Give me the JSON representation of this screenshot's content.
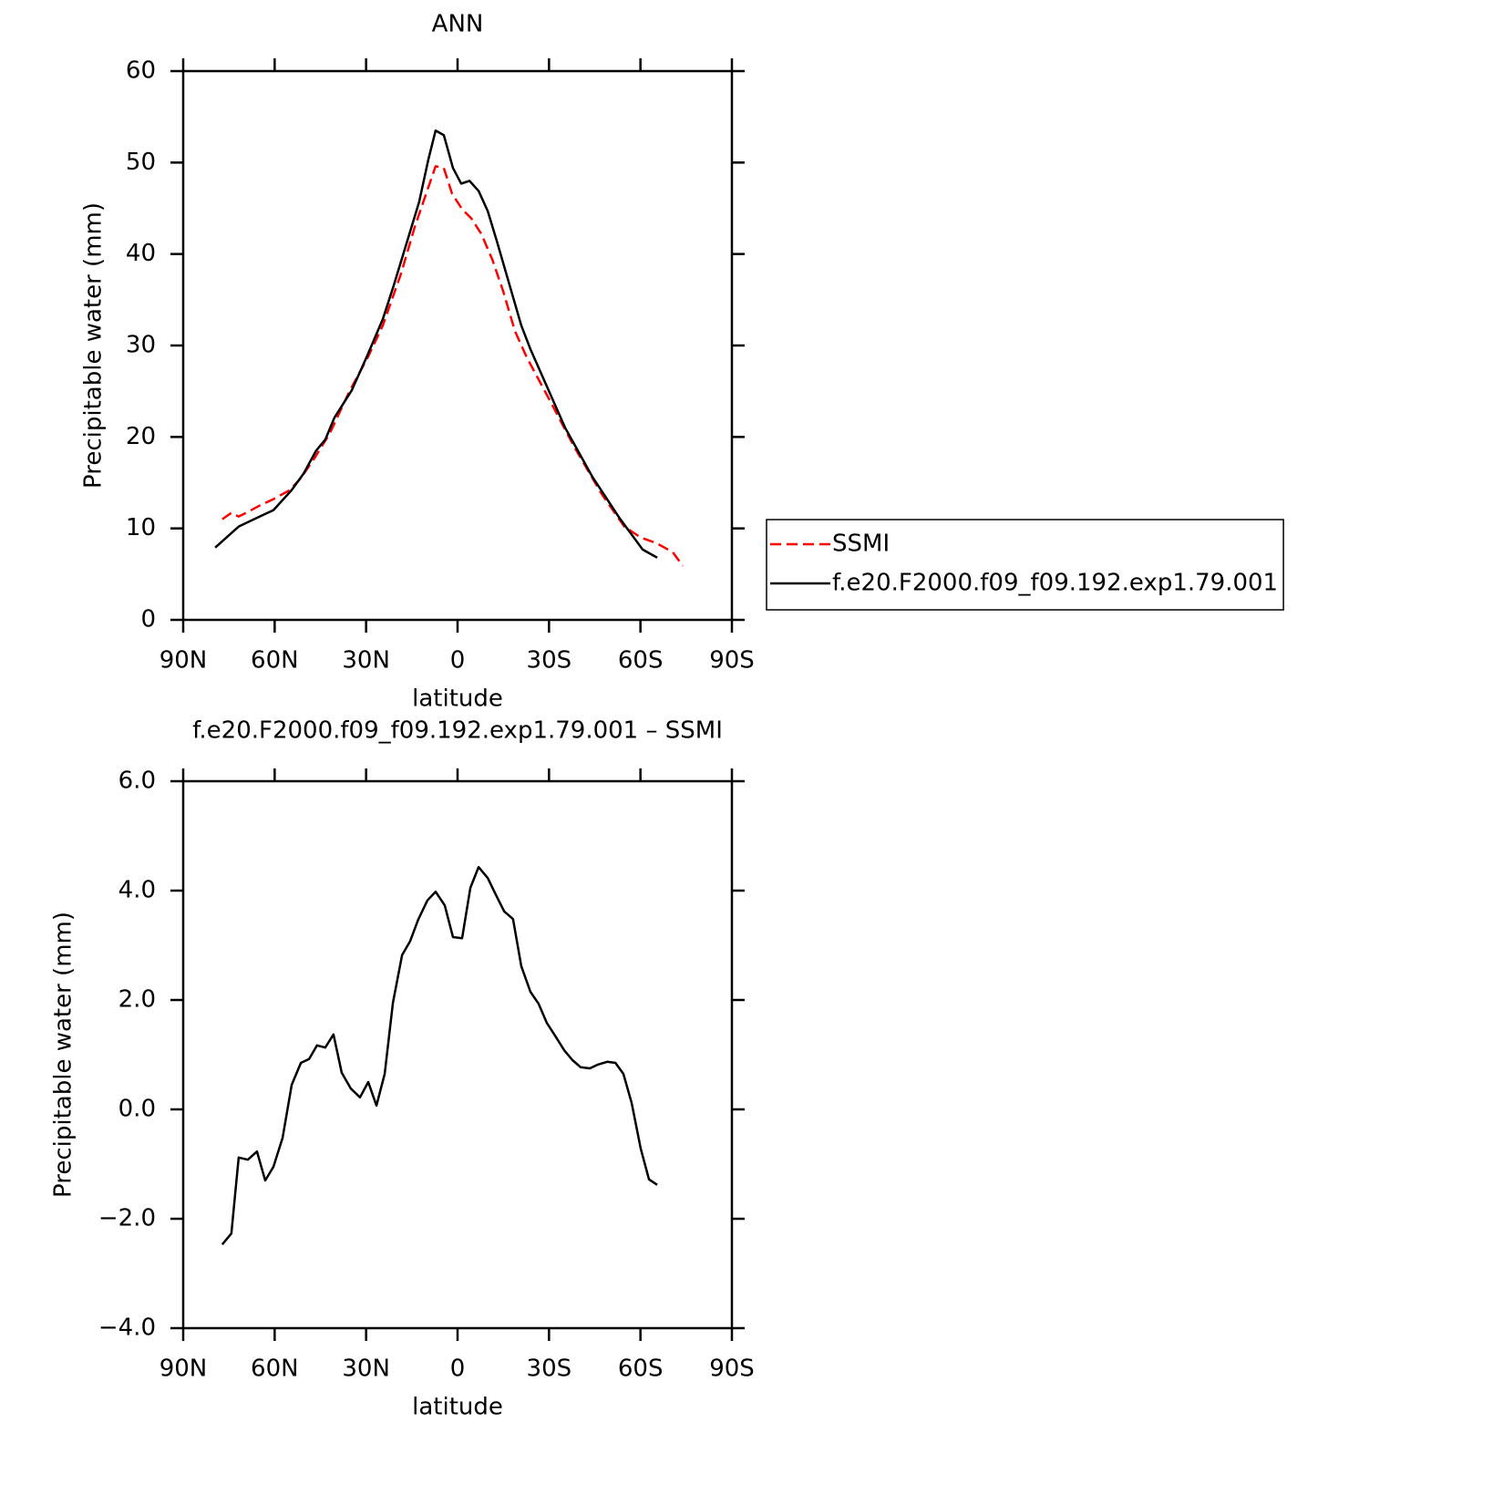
{
  "chart_data": [
    {
      "type": "line",
      "title": "ANN",
      "xlabel": "latitude",
      "ylabel": "Precipitable water (mm)",
      "xlim": [
        90,
        -90
      ],
      "xticks": [
        {
          "value": 90,
          "label": "90N"
        },
        {
          "value": 60,
          "label": "60N"
        },
        {
          "value": 30,
          "label": "30N"
        },
        0,
        {
          "value": -30,
          "label": "30S"
        },
        {
          "value": -60,
          "label": "60S"
        },
        {
          "value": -90,
          "label": "90S"
        }
      ],
      "ylim": [
        0,
        60
      ],
      "yticks": [
        0,
        10,
        20,
        30,
        40,
        50,
        60
      ],
      "legend": "right",
      "series": [
        {
          "name": "SSMI",
          "color": "#ff0000",
          "linestyle": "dashed",
          "x": [
            77.2,
            74.2,
            71.8,
            68.8,
            64.9,
            60.4,
            55.0,
            51.4,
            46.9,
            41.9,
            35.6,
            29.6,
            24.5,
            18.5,
            14.1,
            10.2,
            7.2,
            4.5,
            1.8,
            -1.5,
            -4.5,
            -7.8,
            -11.4,
            -15.0,
            -18.8,
            -22.7,
            -29.3,
            -38.3,
            -47.2,
            -54.7,
            -60.1,
            -65.2,
            -70.6,
            -73.9
          ],
          "values": [
            11.0,
            11.7,
            11.3,
            11.8,
            12.5,
            13.2,
            14.2,
            15.5,
            17.7,
            20.4,
            24.9,
            28.6,
            32.2,
            37.9,
            42.9,
            46.7,
            49.6,
            49.4,
            46.6,
            44.9,
            43.9,
            42.2,
            39.4,
            35.9,
            31.6,
            28.7,
            24.6,
            18.9,
            13.8,
            10.2,
            9.0,
            8.4,
            7.4,
            5.9
          ]
        },
        {
          "name": "f.e20.F2000.f09_f09.192.exp1.79.001",
          "color": "#000000",
          "linestyle": "solid",
          "x": [
            79.5,
            71.8,
            64.9,
            60.4,
            54.4,
            50.5,
            46.4,
            43.4,
            40.4,
            34.7,
            29.6,
            24.5,
            20.9,
            12.6,
            9.6,
            7.2,
            4.5,
            1.5,
            -1.2,
            -3.9,
            -6.9,
            -9.9,
            -12.9,
            -20.9,
            -23.9,
            -35.3,
            -44.3,
            -53.2,
            -60.7,
            -62.8,
            -65.5
          ],
          "values": [
            7.9,
            10.2,
            11.3,
            12.0,
            14.2,
            16.0,
            18.5,
            19.7,
            22.1,
            25.1,
            28.9,
            32.9,
            36.6,
            45.7,
            50.3,
            53.5,
            53.0,
            49.4,
            47.7,
            48.0,
            46.9,
            44.7,
            41.4,
            32.2,
            29.6,
            21.0,
            15.6,
            11.1,
            7.7,
            7.3,
            6.8
          ]
        }
      ]
    },
    {
      "type": "line",
      "title": "f.e20.F2000.f09_f09.192.exp1.79.001 – SSMI",
      "xlabel": "latitude",
      "ylabel": "Precipitable water (mm)",
      "xlim": [
        90,
        -90
      ],
      "xticks": [
        {
          "value": 90,
          "label": "90N"
        },
        {
          "value": 60,
          "label": "60N"
        },
        {
          "value": 30,
          "label": "30N"
        },
        0,
        {
          "value": -30,
          "label": "30S"
        },
        {
          "value": -60,
          "label": "60S"
        },
        {
          "value": -90,
          "label": "90S"
        }
      ],
      "ylim": [
        -4,
        6
      ],
      "yticks": [
        {
          "value": -4,
          "label": "−4.0"
        },
        {
          "value": -2,
          "label": "−2.0"
        },
        {
          "value": 0,
          "label": "0.0"
        },
        {
          "value": 2,
          "label": "2.0"
        },
        {
          "value": 4,
          "label": "4.0"
        },
        {
          "value": 6,
          "label": "6.0"
        }
      ],
      "series": [
        {
          "color": "#000000",
          "linestyle": "solid",
          "x": [
            77.2,
            74.2,
            71.8,
            68.8,
            65.8,
            63.1,
            60.4,
            57.4,
            54.4,
            51.4,
            48.7,
            46.1,
            43.4,
            40.7,
            38.0,
            35.0,
            32.0,
            29.3,
            26.6,
            23.9,
            21.2,
            18.2,
            15.6,
            12.9,
            9.9,
            7.2,
            4.2,
            1.5,
            -1.5,
            -4.2,
            -6.9,
            -9.9,
            -12.6,
            -15.3,
            -18.2,
            -20.9,
            -23.9,
            -26.6,
            -29.3,
            -32.3,
            -35.0,
            -37.7,
            -40.4,
            -43.4,
            -46.1,
            -49.1,
            -51.8,
            -54.4,
            -57.1,
            -60.1,
            -62.8,
            -65.5
          ],
          "values": [
            -2.47,
            -2.27,
            -0.88,
            -0.92,
            -0.77,
            -1.3,
            -1.05,
            -0.52,
            0.45,
            0.85,
            0.92,
            1.17,
            1.13,
            1.37,
            0.67,
            0.38,
            0.22,
            0.5,
            0.07,
            0.65,
            1.95,
            2.82,
            3.07,
            3.47,
            3.82,
            3.98,
            3.73,
            3.15,
            3.13,
            4.05,
            4.43,
            4.23,
            3.92,
            3.62,
            3.48,
            2.62,
            2.15,
            1.93,
            1.58,
            1.32,
            1.08,
            0.9,
            0.77,
            0.75,
            0.82,
            0.87,
            0.85,
            0.65,
            0.12,
            -0.72,
            -1.28,
            -1.38
          ]
        }
      ]
    }
  ]
}
